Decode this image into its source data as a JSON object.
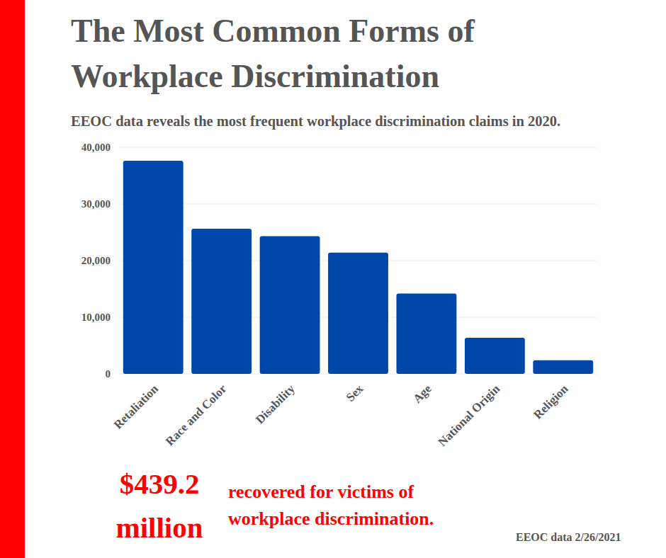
{
  "chart_data": {
    "type": "bar",
    "title": "The Most Common Forms of Workplace Discrimination",
    "subtitle": "EEOC data reveals the most frequent workplace discrimination claims in 2020.",
    "categories": [
      "Retaliation",
      "Race and Color",
      "Disability",
      "Sex",
      "Age",
      "National Origin",
      "Religion"
    ],
    "values": [
      37632,
      25626,
      24324,
      21398,
      14183,
      6377,
      2404
    ],
    "color": "#0047ab",
    "ylim": [
      0,
      40000
    ],
    "yticks": [
      0,
      {
        "value": 10000,
        "label": "10,000"
      },
      {
        "value": 20000,
        "label": "20,000"
      },
      {
        "value": 30000,
        "label": "30,000"
      },
      {
        "value": 40000,
        "label": "40,000"
      }
    ],
    "grid": true,
    "annotations": [
      "$439.2 million",
      "recovered for victims of workplace discrimination."
    ],
    "source": "EEOC data 2/26/2021"
  }
}
